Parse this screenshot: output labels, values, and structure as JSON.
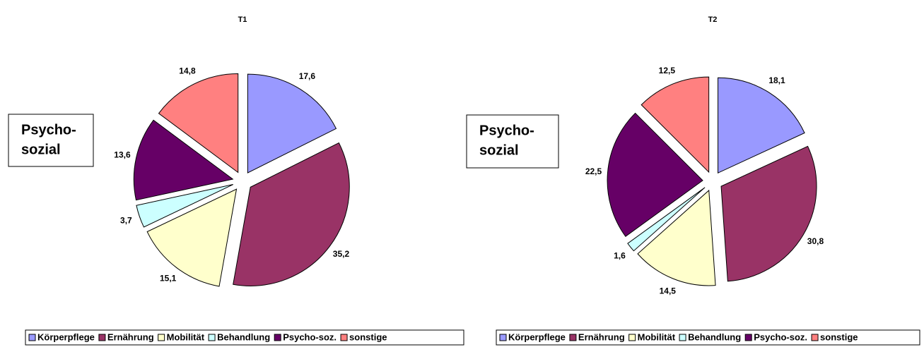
{
  "chart_data": [
    {
      "type": "pie",
      "title": "T1",
      "categories": [
        "Körperpflege",
        "Ernährung",
        "Mobilität",
        "Behandlung",
        "Psycho-soz.",
        "sonstige"
      ],
      "values": [
        17.6,
        35.2,
        15.1,
        3.7,
        13.6,
        14.8
      ],
      "value_labels": [
        "17,6",
        "35,2",
        "15,1",
        "3,7",
        "13,6",
        "14,8"
      ],
      "colors": [
        "#9999ff",
        "#993366",
        "#ffffcc",
        "#ccffff",
        "#660066",
        "#ff8080"
      ],
      "annotation": [
        "Psycho-",
        "sozial"
      ],
      "legend": "bottom"
    },
    {
      "type": "pie",
      "title": "T2",
      "categories": [
        "Körperpflege",
        "Ernährung",
        "Mobilität",
        "Behandlung",
        "Psycho-soz.",
        "sonstige"
      ],
      "values": [
        18.1,
        30.8,
        14.5,
        1.6,
        22.5,
        12.5
      ],
      "value_labels": [
        "18,1",
        "30,8",
        "14,5",
        "1,6",
        "22,5",
        "12,5"
      ],
      "colors": [
        "#9999ff",
        "#993366",
        "#ffffcc",
        "#ccffff",
        "#660066",
        "#ff8080"
      ],
      "annotation": [
        "Psycho-",
        "sozial"
      ],
      "legend": "bottom"
    }
  ]
}
